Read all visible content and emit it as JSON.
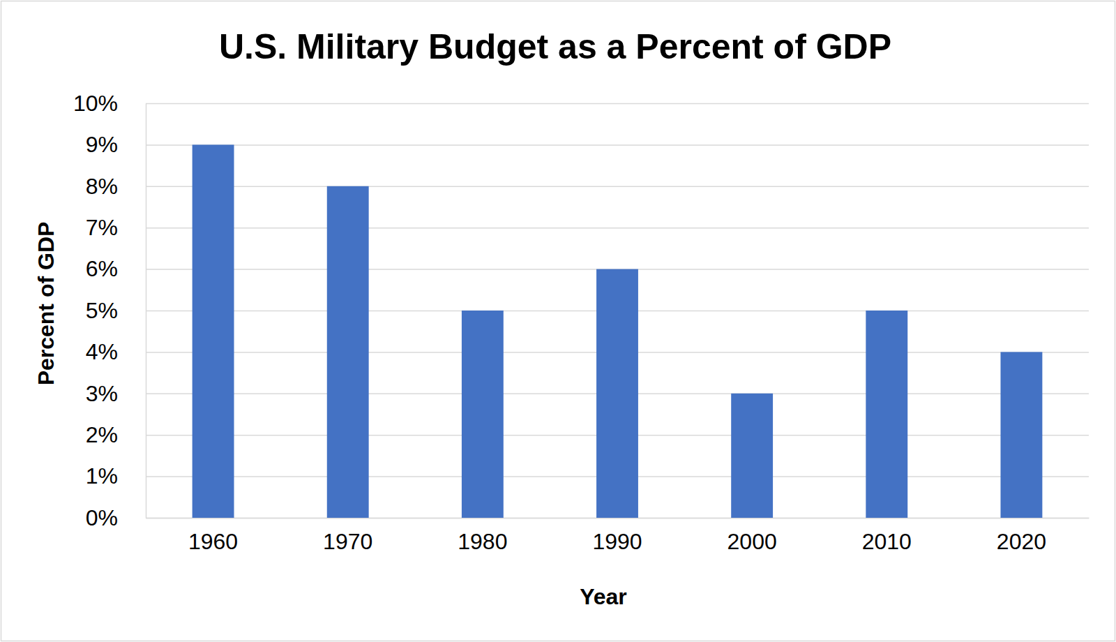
{
  "chart_data": {
    "type": "bar",
    "title": "U.S. Military Budget as a Percent of GDP",
    "x_label": "Year",
    "y_label": "Percent of GDP",
    "categories": [
      "1960",
      "1970",
      "1980",
      "1990",
      "2000",
      "2010",
      "2020"
    ],
    "values": [
      9,
      8,
      5,
      6,
      3,
      5,
      4
    ],
    "color": "#4472c4",
    "ylim": [
      0,
      10
    ],
    "yticks": [
      {
        "value": 0,
        "label": "0%"
      },
      {
        "value": 1,
        "label": "1%"
      },
      {
        "value": 2,
        "label": "2%"
      },
      {
        "value": 3,
        "label": "3%"
      },
      {
        "value": 4,
        "label": "4%"
      },
      {
        "value": 5,
        "label": "5%"
      },
      {
        "value": 6,
        "label": "6%"
      },
      {
        "value": 7,
        "label": "7%"
      },
      {
        "value": 8,
        "label": "8%"
      },
      {
        "value": 9,
        "label": "9%"
      },
      {
        "value": 10,
        "label": "10%"
      }
    ],
    "grid": true
  }
}
